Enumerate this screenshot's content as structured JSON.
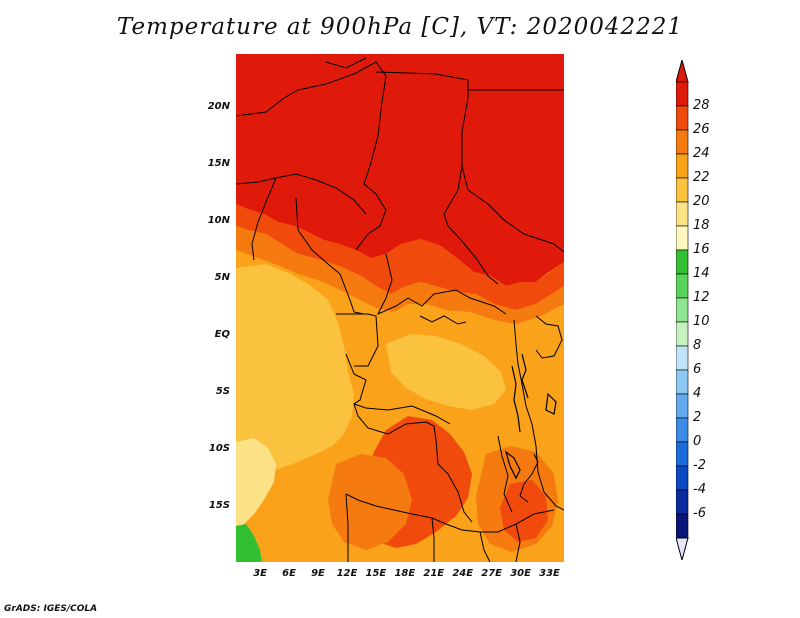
{
  "title": "Temperature at 900hPa [C], VT: 2020042221",
  "credit": "GrADS: IGES/COLA",
  "latitude_ticks": [
    {
      "label": "20N",
      "value": 20
    },
    {
      "label": "15N",
      "value": 15
    },
    {
      "label": "10N",
      "value": 10
    },
    {
      "label": "5N",
      "value": 5
    },
    {
      "label": "EQ",
      "value": 0
    },
    {
      "label": "5S",
      "value": -5
    },
    {
      "label": "10S",
      "value": -10
    },
    {
      "label": "15S",
      "value": -15
    }
  ],
  "longitude_ticks": [
    {
      "label": "3E",
      "value": 3
    },
    {
      "label": "6E",
      "value": 6
    },
    {
      "label": "9E",
      "value": 9
    },
    {
      "label": "12E",
      "value": 12
    },
    {
      "label": "15E",
      "value": 15
    },
    {
      "label": "18E",
      "value": 18
    },
    {
      "label": "21E",
      "value": 21
    },
    {
      "label": "24E",
      "value": 24
    },
    {
      "label": "27E",
      "value": 27
    },
    {
      "label": "30E",
      "value": 30
    },
    {
      "label": "33E",
      "value": 33
    }
  ],
  "map_extent": {
    "lon_min": 0.5,
    "lon_max": 34.5,
    "lat_min": -19.8,
    "lat_max": 24.7
  },
  "colorbar": {
    "labels": [
      "28",
      "26",
      "24",
      "22",
      "20",
      "18",
      "16",
      "14",
      "12",
      "10",
      "8",
      "6",
      "4",
      "2",
      "0",
      "-2",
      "-4",
      "-6"
    ],
    "colors": [
      "#e01a0a",
      "#f04a0c",
      "#f57a0f",
      "#f9a21a",
      "#fbc23f",
      "#fde186",
      "#fff6c0",
      "#32c032",
      "#5ad35a",
      "#8fe48f",
      "#c6f2c0",
      "#bfe3f8",
      "#8cc8f3",
      "#62aaee",
      "#3b8be7",
      "#1c6cdc",
      "#0b49c2",
      "#0a2aa0",
      "#0a1678"
    ],
    "over_color": "#e01a0a",
    "under_color": "#e6e6fa"
  },
  "colors": {
    "t28": "#e01a0a",
    "t26": "#f04a0c",
    "t24": "#f57a0f",
    "t22": "#f9a21a",
    "t20": "#fbc23f",
    "t18": "#fde186",
    "t16": "#fff6c0",
    "t14": "#32c032",
    "border": "#000000"
  }
}
